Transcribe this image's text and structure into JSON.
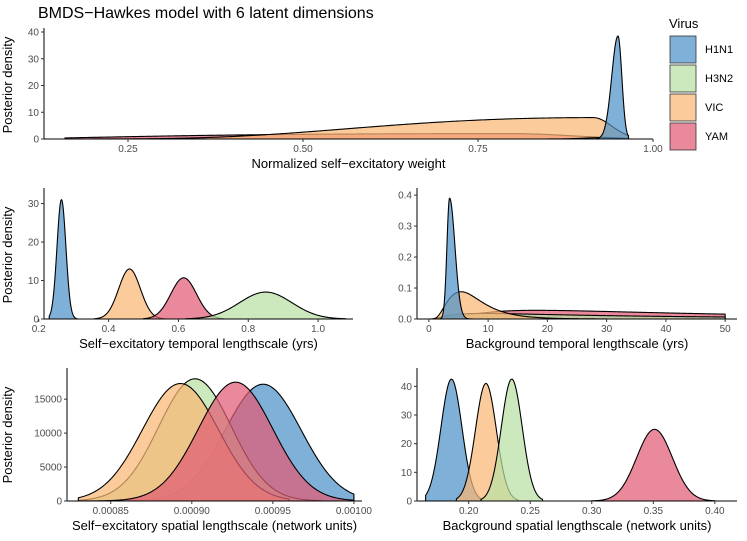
{
  "figure_title": "BMDS−Hawkes model with 6 latent dimensions",
  "y_axis_label": "Posterior density",
  "legend": {
    "title": "Virus",
    "items": [
      {
        "label": "H1N1",
        "color": "#4e91c8"
      },
      {
        "label": "H3N2",
        "color": "#b8e0a4"
      },
      {
        "label": "VIC",
        "color": "#f9b774"
      },
      {
        "label": "YAM",
        "color": "#e05b74"
      }
    ]
  },
  "chart_data": [
    {
      "id": "self-excitatory-weight",
      "type": "area",
      "title": "BMDS−Hawkes model with 6 latent dimensions",
      "xlabel": "Normalized self−excitatory weight",
      "ylabel": "Posterior density",
      "xlim": [
        0.13,
        1.0
      ],
      "ylim": [
        0,
        40
      ],
      "xticks": [
        "0.25",
        "0.50",
        "0.75",
        "1.00"
      ],
      "xtick_values": [
        0.25,
        0.5,
        0.75,
        1.0
      ],
      "yticks": [
        "0",
        "10",
        "20",
        "30",
        "40"
      ],
      "ytick_values": [
        0,
        10,
        20,
        30,
        40
      ],
      "series": [
        {
          "name": "YAM",
          "kind": "lognormal",
          "mode": 0.8,
          "peak": 2.0,
          "min": 0.16,
          "max": 0.965,
          "sdl": 0.9,
          "sdr": 0.1
        },
        {
          "name": "VIC",
          "kind": "lognormal",
          "mode": 0.915,
          "peak": 8.0,
          "min": 0.16,
          "max": 0.965,
          "sdl": 0.4,
          "sdr": 0.028
        },
        {
          "name": "H3N2",
          "kind": "gaussian",
          "mean": 0.925,
          "sd": 0.025,
          "peak": 0.5,
          "min": 0.85,
          "max": 0.965
        },
        {
          "name": "H1N1",
          "kind": "skew",
          "mean": 0.95,
          "peak": 38.5,
          "min": 0.85,
          "max": 0.965,
          "sdl": 0.009,
          "sdr": 0.0055
        }
      ]
    },
    {
      "id": "self-excitatory-temporal",
      "type": "area",
      "xlabel": "Self−excitatory temporal lengthscale (yrs)",
      "ylabel": "Posterior density",
      "xlim": [
        0.215,
        1.1
      ],
      "ylim": [
        0,
        33
      ],
      "xticks": [
        "0.2",
        "0.4",
        "0.6",
        "0.8",
        "1.0"
      ],
      "xtick_values": [
        0.2,
        0.4,
        0.6,
        0.8,
        1.0
      ],
      "yticks": [
        "0",
        "10",
        "20",
        "30"
      ],
      "ytick_values": [
        0,
        10,
        20,
        30
      ],
      "series": [
        {
          "name": "H1N1",
          "kind": "gaussian",
          "mean": 0.265,
          "sd": 0.0128,
          "peak": 31.0,
          "min": 0.23,
          "max": 0.31
        },
        {
          "name": "VIC",
          "kind": "gaussian",
          "mean": 0.46,
          "sd": 0.031,
          "peak": 13.0,
          "min": 0.36,
          "max": 0.56
        },
        {
          "name": "YAM",
          "kind": "gaussian",
          "mean": 0.615,
          "sd": 0.037,
          "peak": 10.7,
          "min": 0.5,
          "max": 0.73
        },
        {
          "name": "H3N2",
          "kind": "gaussian",
          "mean": 0.85,
          "sd": 0.075,
          "peak": 7.0,
          "min": 0.62,
          "max": 1.08
        }
      ]
    },
    {
      "id": "background-temporal",
      "type": "area",
      "xlabel": "Background temporal lengthscale (yrs)",
      "ylabel": "",
      "xlim": [
        -2.0,
        52.0
      ],
      "ylim": [
        0,
        0.41
      ],
      "xticks": [
        "0",
        "10",
        "20",
        "30",
        "40",
        "50"
      ],
      "xtick_values": [
        0,
        10,
        20,
        30,
        40,
        50
      ],
      "yticks": [
        "0.0",
        "0.1",
        "0.2",
        "0.3",
        "0.4"
      ],
      "ytick_values": [
        0.0,
        0.1,
        0.2,
        0.3,
        0.4
      ],
      "series": [
        {
          "name": "YAM",
          "kind": "lognormal",
          "mode": 18.0,
          "peak": 0.028,
          "min": 0.3,
          "max": 50,
          "sdl": 0.8,
          "sdr": 0.95
        },
        {
          "name": "H3N2",
          "kind": "lognormal",
          "mode": 9.0,
          "peak": 0.018,
          "min": 0.3,
          "max": 50,
          "sdl": 1.0,
          "sdr": 1.2
        },
        {
          "name": "VIC",
          "kind": "lognormal",
          "mode": 5.5,
          "peak": 0.088,
          "min": 0.3,
          "max": 30,
          "sdl": 0.6,
          "sdr": 0.5
        },
        {
          "name": "H1N1",
          "kind": "skew",
          "mean": 3.5,
          "peak": 0.39,
          "min": 1.5,
          "max": 8.0,
          "sdl": 0.45,
          "sdr": 0.9
        }
      ]
    },
    {
      "id": "self-excitatory-spatial",
      "type": "area",
      "xlabel": "Self−excitatory spatial lengthscale (network units)",
      "ylabel": "Posterior density",
      "xlim": [
        0.000823,
        0.001005
      ],
      "ylim": [
        0,
        19000
      ],
      "xticks": [
        "0.00085",
        "0.00090",
        "0.00095",
        "0.00100"
      ],
      "xtick_values": [
        0.00085,
        0.0009,
        0.00095,
        0.001
      ],
      "yticks": [
        "0",
        "5000",
        "10000",
        "15000"
      ],
      "ytick_values": [
        0,
        5000,
        10000,
        15000
      ],
      "series": [
        {
          "name": "H1N1",
          "kind": "gaussian",
          "mean": 0.000944,
          "sd": 2.35e-05,
          "peak": 17200,
          "min": 0.000845,
          "max": 0.001
        },
        {
          "name": "H3N2",
          "kind": "gaussian",
          "mean": 0.000902,
          "sd": 2.25e-05,
          "peak": 18000,
          "min": 0.00083,
          "max": 0.00098
        },
        {
          "name": "VIC",
          "kind": "gaussian",
          "mean": 0.000893,
          "sd": 2.35e-05,
          "peak": 17300,
          "min": 0.00083,
          "max": 0.00096
        },
        {
          "name": "YAM",
          "kind": "gaussian",
          "mean": 0.000927,
          "sd": 2.3e-05,
          "peak": 17500,
          "min": 0.00083,
          "max": 0.001
        }
      ]
    },
    {
      "id": "background-spatial",
      "type": "area",
      "xlabel": "Background spatial lengthscale (network units)",
      "ylabel": "",
      "xlim": [
        0.158,
        0.418
      ],
      "ylim": [
        0,
        45
      ],
      "xticks": [
        "0.20",
        "0.25",
        "0.30",
        "0.35",
        "0.40"
      ],
      "xtick_values": [
        0.2,
        0.25,
        0.3,
        0.35,
        0.4
      ],
      "yticks": [
        "0",
        "10",
        "20",
        "30",
        "40"
      ],
      "ytick_values": [
        0,
        10,
        20,
        30,
        40
      ],
      "series": [
        {
          "name": "H1N1",
          "kind": "gaussian",
          "mean": 0.186,
          "sd": 0.0085,
          "peak": 42.5,
          "min": 0.165,
          "max": 0.21
        },
        {
          "name": "VIC",
          "kind": "gaussian",
          "mean": 0.214,
          "sd": 0.0085,
          "peak": 41.0,
          "min": 0.19,
          "max": 0.24
        },
        {
          "name": "H3N2",
          "kind": "gaussian",
          "mean": 0.235,
          "sd": 0.0085,
          "peak": 42.5,
          "min": 0.21,
          "max": 0.26
        },
        {
          "name": "YAM",
          "kind": "gaussian",
          "mean": 0.351,
          "sd": 0.0145,
          "peak": 25.0,
          "min": 0.3,
          "max": 0.4
        }
      ]
    }
  ]
}
